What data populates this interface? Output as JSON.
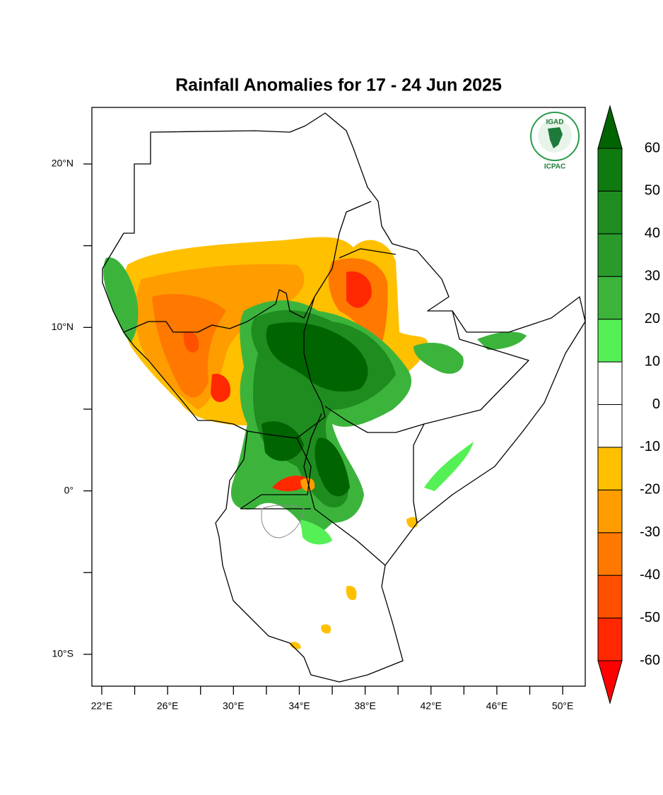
{
  "title": "Rainfall Anomalies for 17 - 24 Jun 2025",
  "map": {
    "xlim": [
      21.4,
      51.37
    ],
    "ylim": [
      -11.95,
      23.46
    ],
    "xticks": [
      {
        "value": 22,
        "label": "22°E"
      },
      {
        "value": 26,
        "label": "26°E"
      },
      {
        "value": 30,
        "label": "30°E"
      },
      {
        "value": 34,
        "label": "34°E"
      },
      {
        "value": 38,
        "label": "38°E"
      },
      {
        "value": 42,
        "label": "42°E"
      },
      {
        "value": 46,
        "label": "46°E"
      },
      {
        "value": 50,
        "label": "50°E"
      }
    ],
    "minor_xticks": [
      24,
      28,
      32,
      36,
      40,
      44,
      48
    ],
    "yticks": [
      {
        "value": 20,
        "label": "20°N"
      },
      {
        "value": 10,
        "label": "10°N"
      },
      {
        "value": 0,
        "label": "0°"
      },
      {
        "value": -10,
        "label": "10°S"
      }
    ],
    "minor_yticks": [
      15,
      5,
      -5
    ]
  },
  "colorbar": {
    "levels": [
      -60,
      -50,
      -40,
      -30,
      -20,
      -10,
      0,
      10,
      20,
      30,
      40,
      50,
      60
    ],
    "colors": [
      "#ff0000",
      "#ff2800",
      "#ff5000",
      "#ff7800",
      "#ff9c00",
      "#ffc000",
      "#ffffff",
      "#ffffff",
      "#55f055",
      "#3cb43c",
      "#2a9a2a",
      "#1e8c1e",
      "#0f7a0f",
      "#006400"
    ]
  },
  "logo": {
    "top": "IGAD",
    "bottom": "ICPAC"
  }
}
